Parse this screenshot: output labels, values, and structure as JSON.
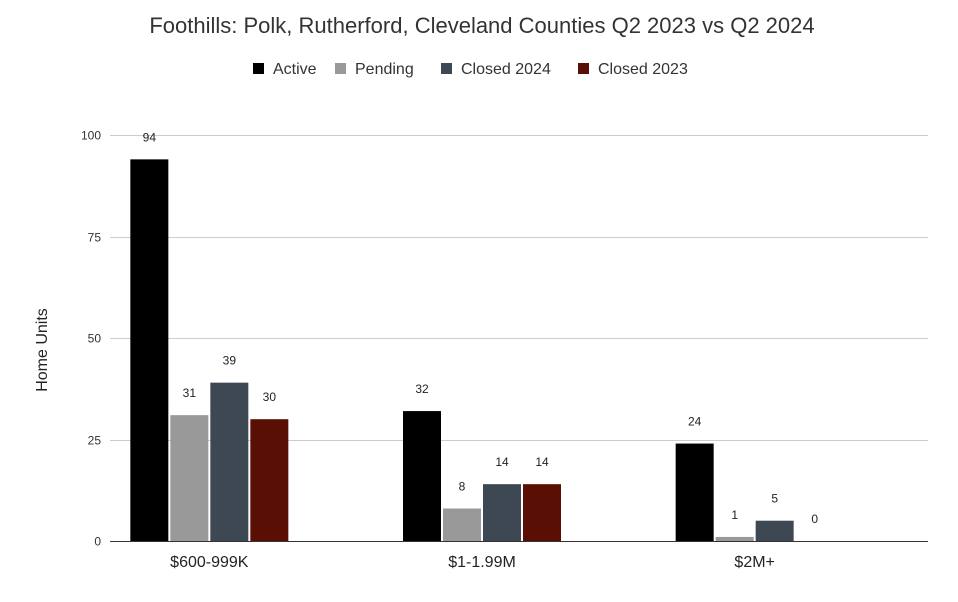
{
  "chart_data": {
    "type": "bar",
    "title": "Foothills: Polk, Rutherford, Cleveland Counties Q2 2023 vs Q2 2024",
    "xlabel": "",
    "ylabel": "Home Units",
    "ylim": [
      0,
      100
    ],
    "yticks": [
      0,
      25,
      50,
      75,
      100
    ],
    "grid": true,
    "legend_position": "top",
    "categories": [
      "$600-999K",
      "$1-1.99M",
      "$2M+"
    ],
    "series": [
      {
        "name": "Active",
        "color": "#000000",
        "values": [
          94,
          32,
          24
        ]
      },
      {
        "name": "Pending",
        "color": "#999999",
        "values": [
          31,
          8,
          1
        ]
      },
      {
        "name": "Closed 2024",
        "color": "#3d4852",
        "values": [
          39,
          14,
          5
        ]
      },
      {
        "name": "Closed 2023",
        "color": "#5a0f05",
        "values": [
          30,
          14,
          0
        ]
      }
    ]
  }
}
